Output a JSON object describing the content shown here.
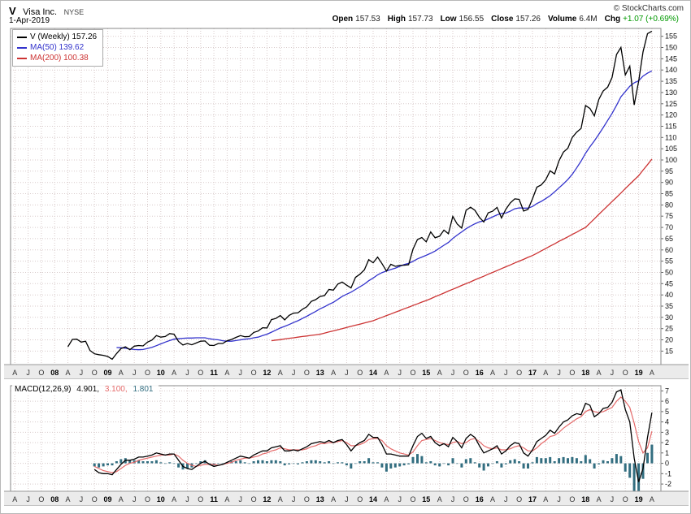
{
  "header": {
    "symbol": "V",
    "name": "Visa Inc.",
    "exchange": "NYSE",
    "date": "1-Apr-2019",
    "copyright": "© StockCharts.com",
    "stats": [
      {
        "label": "Open",
        "value": "157.53"
      },
      {
        "label": "High",
        "value": "157.73"
      },
      {
        "label": "Low",
        "value": "156.55"
      },
      {
        "label": "Close",
        "value": "157.26"
      },
      {
        "label": "Volume",
        "value": "6.4M"
      },
      {
        "label": "Chg",
        "value": "+1.07 (+0.69%)",
        "color": "#009900"
      }
    ]
  },
  "colors": {
    "price": "#000000",
    "ma50": "#3333cc",
    "ma200": "#cc3333",
    "macd": "#000000",
    "signal": "#e56a6a",
    "hist": "#336e80",
    "grid": "#d8caca",
    "chg_up": "#009900"
  },
  "axis": {
    "xlim": [
      2007.17,
      2019.42
    ],
    "xtick_start": 2007.25,
    "xtick_step": 0.25,
    "xtick_labels": [
      "A",
      "J",
      "O",
      "08",
      "A",
      "J",
      "O",
      "09",
      "A",
      "J",
      "O",
      "10",
      "A",
      "J",
      "O",
      "11",
      "A",
      "J",
      "O",
      "12",
      "A",
      "J",
      "O",
      "13",
      "A",
      "J",
      "O",
      "14",
      "A",
      "J",
      "O",
      "15",
      "A",
      "J",
      "O",
      "16",
      "A",
      "J",
      "O",
      "17",
      "A",
      "J",
      "O",
      "18",
      "A",
      "J",
      "O",
      "19",
      "A"
    ]
  },
  "chart_data": [
    {
      "type": "line",
      "title": "V (Weekly)",
      "x_start": 2008.25,
      "x_step": 0.0833333,
      "ylim": [
        9,
        158.5
      ],
      "yticks": {
        "min": 15,
        "max": 155,
        "step": 5
      },
      "legend_position": "top-left",
      "grid": true,
      "series": [
        {
          "name": "V (Weekly)",
          "legend_value": "157.26",
          "color_key": "price",
          "width": 1.3,
          "start_index": 0,
          "values": [
            16.9,
            20.2,
            20.3,
            19.0,
            19.4,
            15.3,
            13.8,
            13.4,
            13.1,
            12.6,
            11.4,
            13.9,
            16.1,
            16.9,
            15.6,
            17.2,
            17.5,
            17.3,
            19.0,
            19.9,
            21.9,
            21.2,
            21.5,
            22.8,
            22.5,
            19.3,
            17.7,
            18.4,
            17.8,
            18.6,
            19.4,
            19.5,
            17.6,
            17.5,
            18.4,
            18.4,
            19.6,
            20.2,
            21.1,
            21.9,
            21.4,
            21.5,
            23.3,
            23.9,
            25.4,
            25.3,
            29.0,
            29.5,
            30.8,
            28.9,
            30.9,
            31.9,
            32.0,
            33.6,
            34.7,
            37.1,
            37.9,
            39.3,
            39.7,
            42.4,
            42.1,
            44.8,
            45.7,
            44.3,
            43.1,
            47.8,
            49.2,
            51.1,
            55.7,
            54.3,
            56.8,
            53.9,
            50.6,
            53.6,
            52.7,
            53.1,
            53.2,
            53.4,
            60.3,
            64.6,
            65.5,
            63.6,
            68.0,
            65.4,
            66.1,
            68.8,
            67.2,
            74.9,
            71.5,
            69.7,
            77.6,
            79.0,
            77.6,
            74.5,
            72.4,
            76.5,
            77.2,
            78.9,
            74.2,
            78.1,
            80.9,
            82.7,
            82.5,
            77.3,
            78.0,
            82.7,
            87.9,
            88.9,
            91.2,
            95.2,
            93.8,
            99.6,
            103.5,
            105.2,
            110.0,
            112.4,
            114.0,
            124.2,
            122.9,
            119.6,
            126.9,
            130.7,
            132.4,
            136.7,
            146.9,
            150.1,
            137.8,
            141.7,
            124.5,
            135.0,
            148.1,
            156.2,
            157.26
          ]
        },
        {
          "name": "MA(50)",
          "legend_value": "139.62",
          "color_key": "ma50",
          "width": 1.3,
          "start_index": 11,
          "values": [
            16.6,
            16.5,
            16.3,
            15.9,
            15.7,
            15.6,
            15.7,
            16.2,
            16.7,
            17.4,
            18.2,
            19.0,
            19.7,
            20.3,
            20.5,
            20.7,
            20.8,
            20.8,
            20.9,
            20.9,
            20.9,
            20.5,
            20.2,
            20.0,
            19.6,
            19.4,
            19.4,
            19.7,
            20.0,
            20.3,
            20.5,
            20.9,
            21.2,
            21.9,
            22.5,
            23.4,
            24.3,
            25.3,
            26.0,
            26.8,
            27.7,
            28.5,
            29.5,
            30.5,
            31.6,
            32.6,
            33.8,
            34.7,
            35.8,
            36.7,
            38.0,
            39.3,
            40.3,
            41.2,
            42.4,
            43.6,
            44.8,
            46.3,
            47.5,
            48.9,
            49.9,
            50.6,
            51.3,
            51.9,
            52.7,
            53.5,
            54.0,
            54.9,
            56.0,
            56.8,
            57.6,
            58.5,
            59.5,
            60.8,
            62.1,
            63.3,
            65.1,
            66.6,
            68.0,
            69.4,
            70.6,
            71.6,
            72.5,
            72.9,
            73.8,
            74.7,
            75.6,
            76.2,
            76.4,
            77.2,
            78.3,
            78.7,
            78.6,
            78.6,
            79.3,
            80.6,
            81.6,
            82.8,
            84.1,
            85.8,
            87.6,
            89.4,
            91.3,
            93.6,
            96.5,
            99.5,
            103.0,
            105.9,
            108.5,
            111.4,
            114.4,
            117.6,
            120.7,
            124.3,
            128.1,
            130.4,
            132.8,
            134.3,
            135.2,
            137.3,
            138.6,
            139.62
          ]
        },
        {
          "name": "MA(200)",
          "legend_value": "100.38",
          "color_key": "ma200",
          "width": 1.3,
          "start_index": 46,
          "values": [
            19.6,
            19.9,
            20.1,
            20.4,
            20.7,
            20.9,
            21.2,
            21.5,
            21.7,
            22.0,
            22.2,
            22.5,
            23.0,
            23.5,
            24.0,
            24.5,
            25.0,
            25.5,
            26.0,
            26.5,
            27.0,
            27.5,
            28.0,
            28.5,
            29.3,
            30.0,
            30.8,
            31.5,
            32.3,
            33.0,
            33.8,
            34.5,
            35.3,
            36.0,
            36.8,
            37.5,
            38.3,
            39.2,
            40.0,
            40.8,
            41.7,
            42.5,
            43.3,
            44.2,
            45.0,
            45.8,
            46.7,
            47.5,
            48.3,
            49.2,
            50.0,
            50.8,
            51.7,
            52.5,
            53.3,
            54.2,
            55.0,
            55.8,
            56.7,
            57.5,
            58.5,
            59.6,
            60.6,
            61.7,
            62.7,
            63.8,
            64.8,
            65.8,
            66.9,
            67.9,
            69.0,
            70.0,
            71.9,
            73.8,
            75.8,
            77.7,
            79.6,
            81.5,
            83.4,
            85.3,
            87.3,
            89.2,
            91.1,
            93.0,
            95.5,
            97.9,
            100.38
          ]
        }
      ]
    },
    {
      "type": "line+histogram",
      "title": "MACD(12,26,9)",
      "values_label": {
        "macd": "4.901,",
        "signal": "3.100,",
        "hist": "1.801"
      },
      "x_start": 2008.25,
      "x_step": 0.0833333,
      "ylim": [
        -2.7,
        7.5
      ],
      "yticks": {
        "min": -2,
        "max": 7,
        "step": 1
      },
      "grid": true,
      "histogram": "macd-minus-signal",
      "hist_color_key": "hist",
      "series": [
        {
          "name": "MACD",
          "color_key": "macd",
          "width": 1.3,
          "start_index": 6,
          "values": [
            -0.6,
            -0.9,
            -1.0,
            -1.0,
            -1.1,
            -0.6,
            -0.1,
            0.3,
            0.3,
            0.4,
            0.6,
            0.6,
            0.7,
            0.8,
            1.0,
            0.9,
            0.8,
            0.9,
            0.9,
            0.3,
            -0.3,
            -0.5,
            -0.6,
            -0.3,
            0.0,
            0.2,
            -0.1,
            -0.3,
            -0.2,
            -0.1,
            0.1,
            0.3,
            0.5,
            0.7,
            0.6,
            0.5,
            0.8,
            1.0,
            1.2,
            1.2,
            1.5,
            1.6,
            1.7,
            1.2,
            1.2,
            1.3,
            1.2,
            1.4,
            1.6,
            1.9,
            2.0,
            2.1,
            2.0,
            2.2,
            2.0,
            2.2,
            2.3,
            1.8,
            1.2,
            1.7,
            2.0,
            2.2,
            2.8,
            2.5,
            2.5,
            1.8,
            0.9,
            0.9,
            0.8,
            0.7,
            0.7,
            0.7,
            1.7,
            2.6,
            2.9,
            2.4,
            2.6,
            2.0,
            1.7,
            1.9,
            1.6,
            2.5,
            2.1,
            1.5,
            2.4,
            2.8,
            2.5,
            1.7,
            1.0,
            1.2,
            1.4,
            1.7,
            0.9,
            1.2,
            1.7,
            2.0,
            1.9,
            1.0,
            0.7,
            1.3,
            2.1,
            2.4,
            2.7,
            3.2,
            2.9,
            3.5,
            4.0,
            4.2,
            4.6,
            4.8,
            4.7,
            5.8,
            5.6,
            4.5,
            4.8,
            5.3,
            5.4,
            5.9,
            6.9,
            7.1,
            5.2,
            4.0,
            0.5,
            -1.8,
            -0.5,
            2.5,
            4.901
          ]
        },
        {
          "name": "Signal",
          "color_key": "signal",
          "width": 1.2,
          "start_index": 6,
          "values": [
            -0.3,
            -0.5,
            -0.7,
            -0.8,
            -0.9,
            -0.8,
            -0.5,
            -0.2,
            0.0,
            0.1,
            0.3,
            0.4,
            0.5,
            0.6,
            0.7,
            0.8,
            0.8,
            0.8,
            0.9,
            0.7,
            0.3,
            0.0,
            -0.2,
            -0.3,
            -0.2,
            -0.1,
            -0.1,
            -0.1,
            -0.2,
            -0.1,
            0.0,
            0.1,
            0.3,
            0.4,
            0.5,
            0.5,
            0.6,
            0.7,
            0.9,
            1.0,
            1.2,
            1.3,
            1.5,
            1.4,
            1.3,
            1.3,
            1.3,
            1.3,
            1.4,
            1.6,
            1.7,
            1.9,
            1.9,
            2.0,
            2.0,
            2.1,
            2.2,
            2.0,
            1.7,
            1.7,
            1.8,
            2.0,
            2.3,
            2.4,
            2.4,
            2.2,
            1.7,
            1.4,
            1.2,
            1.0,
            0.9,
            0.8,
            1.1,
            1.7,
            2.2,
            2.3,
            2.4,
            2.2,
            2.0,
            1.9,
            1.8,
            2.0,
            2.1,
            1.9,
            2.0,
            2.3,
            2.4,
            2.1,
            1.7,
            1.5,
            1.4,
            1.5,
            1.3,
            1.3,
            1.4,
            1.6,
            1.7,
            1.5,
            1.2,
            1.2,
            1.5,
            1.9,
            2.2,
            2.6,
            2.7,
            3.0,
            3.4,
            3.7,
            4.0,
            4.3,
            4.5,
            5.0,
            5.2,
            5.0,
            4.9,
            5.0,
            5.2,
            5.4,
            6.0,
            6.4,
            6.0,
            5.4,
            3.9,
            2.1,
            1.0,
            1.5,
            3.1
          ]
        }
      ]
    }
  ]
}
